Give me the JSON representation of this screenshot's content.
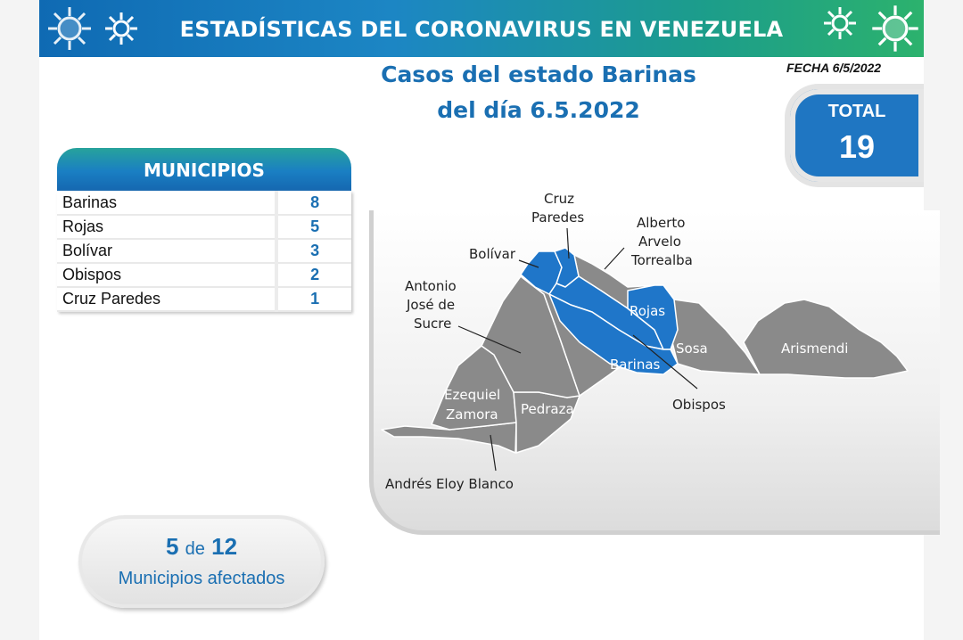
{
  "header": {
    "title": "ESTADÍSTICAS DEL CORONAVIRUS EN VENEZUELA",
    "date": "FECHA 6/5/2022"
  },
  "subtitle": {
    "line1": "Casos del estado Barinas",
    "line2": "del día 6.5.2022"
  },
  "total": {
    "label": "TOTAL",
    "value": "19"
  },
  "municipios": {
    "title": "MUNICIPIOS",
    "rows": [
      {
        "name": "Barinas",
        "count": "8"
      },
      {
        "name": "Rojas",
        "count": "5"
      },
      {
        "name": "Bolívar",
        "count": "3"
      },
      {
        "name": "Obispos",
        "count": "2"
      },
      {
        "name": "Cruz Paredes",
        "count": "1"
      }
    ]
  },
  "map": {
    "labels": {
      "cruz_paredes_1": "Cruz",
      "cruz_paredes_2": "Paredes",
      "alberto_1": "Alberto",
      "alberto_2": "Arvelo",
      "alberto_3": "Torrealba",
      "bolivar": "Bolívar",
      "sucre_1": "Antonio",
      "sucre_2": "José de",
      "sucre_3": "Sucre",
      "rojas": "Rojas",
      "sosa": "Sosa",
      "arismendi": "Arismendi",
      "barinas": "Barinas",
      "obispos": "Obispos",
      "ezequiel_1": "Ezequiel",
      "ezequiel_2": "Zamora",
      "pedraza": "Pedraza",
      "andres": "Andrés Eloy Blanco"
    },
    "colors": {
      "affected": "#1f76c9",
      "unaffected": "#8a8a8a",
      "border": "#ffffff"
    }
  },
  "summary": {
    "count": "5",
    "connector": "de",
    "total": "12",
    "label": "Municipios afectados"
  }
}
